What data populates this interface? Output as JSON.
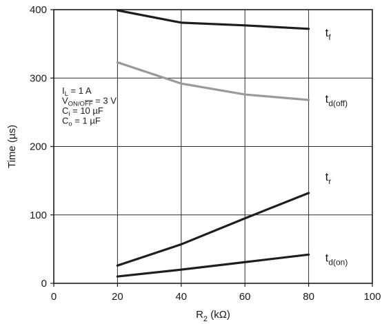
{
  "chart_data": {
    "type": "line",
    "xlabel": {
      "main": "R",
      "sub": "2",
      "unit": " (kΩ)"
    },
    "ylabel": "Time (µs)",
    "xlim": [
      0,
      100
    ],
    "ylim": [
      0,
      400
    ],
    "xticks": [
      0,
      20,
      40,
      60,
      80,
      100
    ],
    "yticks": [
      0,
      100,
      200,
      300,
      400
    ],
    "grid": true,
    "series": [
      {
        "name": {
          "main": "t",
          "sub": "f"
        },
        "color": "#1e1e1e",
        "x": [
          20,
          40,
          60,
          80
        ],
        "y": [
          399,
          381,
          377,
          372
        ]
      },
      {
        "name": {
          "main": "t",
          "sub": "d(off)"
        },
        "color": "#9a9a9a",
        "x": [
          20,
          40,
          60,
          80
        ],
        "y": [
          323,
          292,
          276,
          268
        ]
      },
      {
        "name": {
          "main": "t",
          "sub": "r"
        },
        "color": "#1e1e1e",
        "x": [
          20,
          40,
          60,
          80
        ],
        "y": [
          26,
          57,
          95,
          132
        ]
      },
      {
        "name": {
          "main": "t",
          "sub": "d(on)"
        },
        "color": "#1e1e1e",
        "x": [
          20,
          40,
          60,
          80
        ],
        "y": [
          10,
          20,
          31,
          42
        ]
      }
    ],
    "conditions": [
      {
        "parts": [
          {
            "t": "I"
          },
          {
            "t": "L",
            "sub": true
          },
          {
            "t": " = 1 A"
          }
        ]
      },
      {
        "parts": [
          {
            "t": "V"
          },
          {
            "t": "ON/O",
            "sub": true,
            "over": false
          },
          {
            "t": "FF",
            "sub": true,
            "over": true
          },
          {
            "t": " = 3 V"
          }
        ]
      },
      {
        "parts": [
          {
            "t": "C"
          },
          {
            "t": "i",
            "sub": true
          },
          {
            "t": " = 10 µF"
          }
        ]
      },
      {
        "parts": [
          {
            "t": " C"
          },
          {
            "t": "o",
            "sub": true
          },
          {
            "t": " = 1 µF"
          }
        ]
      }
    ]
  }
}
